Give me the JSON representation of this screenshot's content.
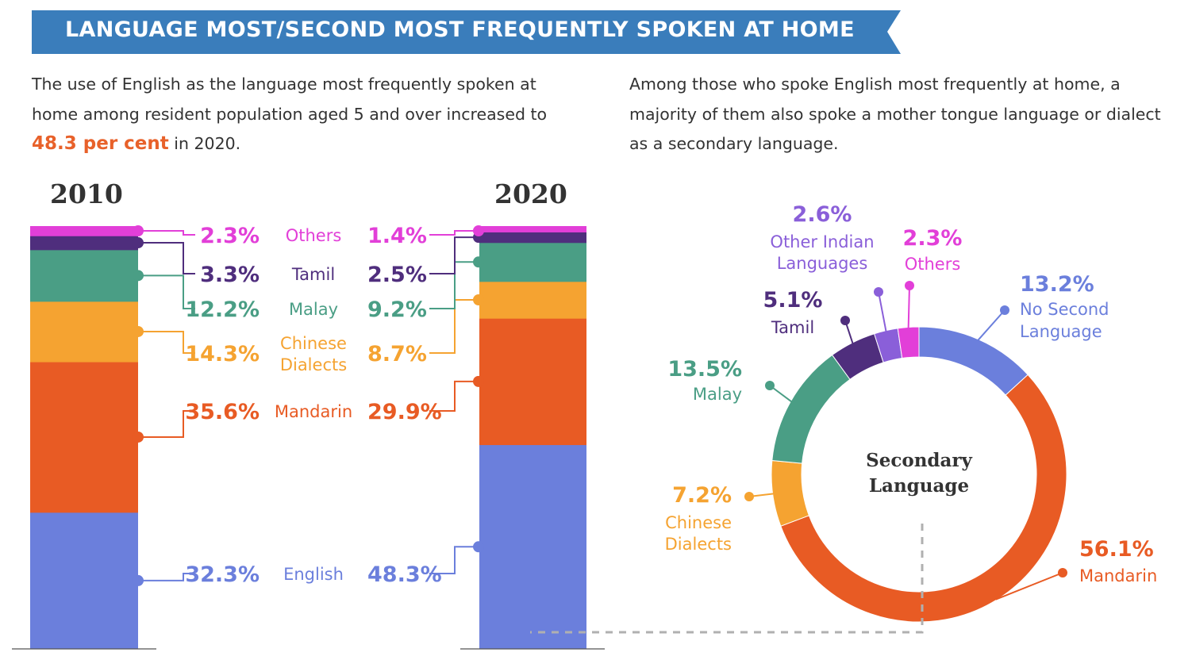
{
  "header": {
    "title": "LANGUAGE MOST/SECOND MOST FREQUENTLY SPOKEN AT HOME"
  },
  "intro_left": {
    "before": "The use of English as the language most frequently spoken at home among resident population aged 5 and over increased to ",
    "highlight": "48.3 per cent",
    "after": " in 2020."
  },
  "intro_right": {
    "text": "Among those who spoke English most frequently at home, a majority of them also spoke a mother tongue language or dialect as a secondary language."
  },
  "colors": {
    "banner": "#3a7dbb",
    "english": "#6b7fdc",
    "mandarin": "#e85b24",
    "chinese_dialects": "#f5a331",
    "malay": "#4a9e85",
    "tamil": "#4f2e7d",
    "other_indian": "#8a5fd9",
    "others": "#e23fd8"
  },
  "chart_data": [
    {
      "type": "bar",
      "stacked": true,
      "categories": [
        "2010",
        "2020"
      ],
      "series": [
        {
          "name": "English",
          "values": [
            32.3,
            48.3
          ],
          "labels": [
            "32.3%",
            "48.3%"
          ],
          "color": "#6b7fdc"
        },
        {
          "name": "Mandarin",
          "values": [
            35.6,
            29.9
          ],
          "labels": [
            "35.6%",
            "29.9%"
          ],
          "color": "#e85b24"
        },
        {
          "name": "Chinese Dialects",
          "values": [
            14.3,
            8.7
          ],
          "labels": [
            "14.3%",
            "8.7%"
          ],
          "color": "#f5a331"
        },
        {
          "name": "Malay",
          "values": [
            12.2,
            9.2
          ],
          "labels": [
            "12.2%",
            "9.2%"
          ],
          "color": "#4a9e85"
        },
        {
          "name": "Tamil",
          "values": [
            3.3,
            2.5
          ],
          "labels": [
            "3.3%",
            "2.5%"
          ],
          "color": "#4f2e7d"
        },
        {
          "name": "Others",
          "values": [
            2.3,
            1.4
          ],
          "labels": [
            "2.3%",
            "1.4%"
          ],
          "color": "#e23fd8"
        }
      ]
    },
    {
      "type": "pie",
      "donut": true,
      "title": "Secondary Language",
      "slices": [
        {
          "name": "No Second Language",
          "value": 13.2,
          "label": "13.2%",
          "color": "#6b7fdc"
        },
        {
          "name": "Mandarin",
          "value": 56.1,
          "label": "56.1%",
          "color": "#e85b24"
        },
        {
          "name": "Chinese Dialects",
          "value": 7.2,
          "label": "7.2%",
          "color": "#f5a331"
        },
        {
          "name": "Malay",
          "value": 13.5,
          "label": "13.5%",
          "color": "#4a9e85"
        },
        {
          "name": "Tamil",
          "value": 5.1,
          "label": "5.1%",
          "color": "#4f2e7d"
        },
        {
          "name": "Other Indian Languages",
          "value": 2.6,
          "label": "2.6%",
          "color": "#8a5fd9"
        },
        {
          "name": "Others",
          "value": 2.3,
          "label": "2.3%",
          "color": "#e23fd8"
        }
      ]
    }
  ],
  "bar_labels": {
    "English": "English",
    "Mandarin": "Mandarin",
    "Chinese Dialects": [
      "Chinese",
      "Dialects"
    ],
    "Malay": "Malay",
    "Tamil": "Tamil",
    "Others": "Others"
  },
  "donut_labels": {
    "No Second Language": [
      "No Second",
      "Language"
    ],
    "Mandarin": [
      "Mandarin"
    ],
    "Chinese Dialects": [
      "Chinese",
      "Dialects"
    ],
    "Malay": [
      "Malay"
    ],
    "Tamil": [
      "Tamil"
    ],
    "Other Indian Languages": [
      "Other Indian",
      "Languages"
    ],
    "Others": [
      "Others"
    ]
  }
}
